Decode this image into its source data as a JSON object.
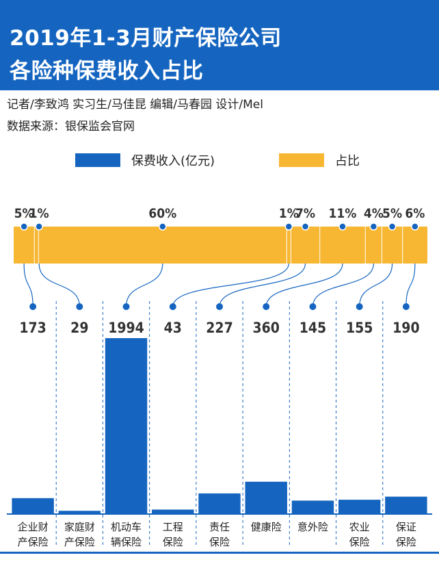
{
  "header": {
    "title_line1": "2019年1-3月财产保险公司",
    "title_line2": "各险种保费收入占比"
  },
  "credits": "记者/李致鸿  实习生/马佳昆  编辑/马春园  设计/Mel",
  "source": "数据来源：银保监会官网",
  "legend": [
    {
      "label": "保费收入(亿元)",
      "color": "#1565c0"
    },
    {
      "label": "占比",
      "color": "#f7b733"
    }
  ],
  "colors": {
    "bar": "#1565c0",
    "share": "#f7b733",
    "header": "#1565c0"
  },
  "chart_data": {
    "type": "bar",
    "categories": [
      [
        "企业财",
        "产保险"
      ],
      [
        "家庭财",
        "产保险"
      ],
      [
        "机动车",
        "辆保险"
      ],
      [
        "工程",
        "保险"
      ],
      [
        "责任",
        "保险"
      ],
      [
        "健康险"
      ],
      [
        "意外险"
      ],
      [
        "农业",
        "保险"
      ],
      [
        "保证",
        "保险"
      ]
    ],
    "series": [
      {
        "name": "保费收入(亿元)",
        "values": [
          173,
          29,
          1994,
          43,
          227,
          360,
          145,
          155,
          190
        ]
      },
      {
        "name": "占比",
        "values": [
          5,
          1,
          60,
          1,
          7,
          11,
          4,
          5,
          6
        ]
      }
    ],
    "value_labels": [
      "173",
      "29",
      "1994",
      "43",
      "227",
      "360",
      "145",
      "155",
      "190"
    ],
    "share_labels": [
      "5%",
      "1%",
      "60%",
      "1%",
      "7%",
      "11%",
      "4%",
      "5%",
      "6%"
    ],
    "ylim": [
      0,
      1994
    ]
  }
}
